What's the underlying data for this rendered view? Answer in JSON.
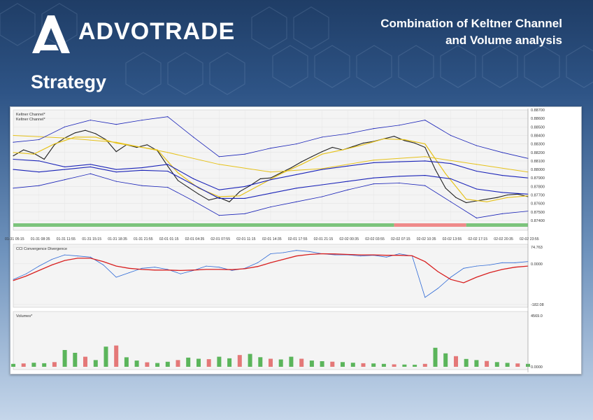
{
  "header": {
    "brand": "ADVOTRADE",
    "headline_line1": "Combination of Keltner Channel",
    "headline_line2": "and Volume analysis",
    "section_title": "Strategy"
  },
  "colors": {
    "price": "#222222",
    "keltner_ema": "#e6c21a",
    "keltner_outer": "#1a23b8",
    "cci_fast": "#2f6ad6",
    "cci_slow": "#d81f1f",
    "volume_up": "#3fa93f",
    "volume_down": "#e06161",
    "trend_up": "#7cc47c",
    "trend_down": "#ef8a8a"
  },
  "chart_data": [
    {
      "type": "line",
      "panel": "price",
      "legend": [
        "Keltner Channel*",
        "Keltner Channel*"
      ],
      "x_tick_labels": [
        "01-31 05:15",
        "01-31 08:35",
        "01-31 11:55",
        "01-31 15:15",
        "01-31 18:35",
        "01-31 21:55",
        "02-01 01:15",
        "02-01 04:35",
        "02-01 07:55",
        "02-01 11:15",
        "02-01 14:35",
        "02-01 17:55",
        "02-01 21:15",
        "02-02 00:35",
        "02-02 03:55",
        "02-02 07:15",
        "02-02 10:35",
        "02-02 13:55",
        "02-02 17:15",
        "02-02 20:35",
        "02-02 23:55"
      ],
      "y_tick_labels": [
        "0.88700",
        "0.88600",
        "0.88500",
        "0.88400",
        "0.88300",
        "0.88200",
        "0.88100",
        "0.88000",
        "0.87900",
        "0.87800",
        "0.87700",
        "0.87600",
        "0.87500",
        "0.87400"
      ],
      "ylim": [
        0.874,
        0.887
      ],
      "series": [
        {
          "role": "price",
          "x": [
            0,
            4,
            8,
            12,
            16,
            20,
            24,
            28,
            32,
            36,
            40,
            44,
            48,
            52,
            56,
            60,
            64,
            68,
            72,
            76,
            80,
            84,
            88,
            92,
            96,
            100,
            104,
            108,
            112,
            116,
            120,
            124,
            128,
            132,
            136,
            140,
            144,
            148,
            152,
            156,
            160,
            164,
            168,
            172,
            176,
            180,
            184,
            188,
            192,
            196,
            200
          ],
          "values": [
            0.8816,
            0.8823,
            0.8819,
            0.8812,
            0.8829,
            0.8837,
            0.8843,
            0.8846,
            0.8842,
            0.8835,
            0.8821,
            0.8829,
            0.8826,
            0.8829,
            0.8822,
            0.8804,
            0.8787,
            0.8779,
            0.8771,
            0.8764,
            0.8767,
            0.8762,
            0.8774,
            0.8781,
            0.8789,
            0.879,
            0.8796,
            0.8802,
            0.8809,
            0.8815,
            0.8821,
            0.8826,
            0.8823,
            0.8827,
            0.8831,
            0.8833,
            0.8836,
            0.8839,
            0.8834,
            0.8831,
            0.8826,
            0.88,
            0.8778,
            0.8767,
            0.8761,
            0.8763,
            0.8765,
            0.8767,
            0.877,
            0.8771,
            0.8768
          ]
        },
        {
          "role": "keltner_mid_fast",
          "x": [
            0,
            8,
            16,
            24,
            32,
            40,
            48,
            56,
            64,
            72,
            80,
            88,
            96,
            104,
            112,
            120,
            128,
            136,
            144,
            152,
            160,
            168,
            176,
            184,
            192,
            200
          ],
          "values": [
            0.882,
            0.8818,
            0.883,
            0.8838,
            0.8838,
            0.8831,
            0.8827,
            0.8823,
            0.8796,
            0.8778,
            0.8768,
            0.8769,
            0.8782,
            0.8795,
            0.8806,
            0.8818,
            0.8823,
            0.8829,
            0.8836,
            0.8835,
            0.883,
            0.8795,
            0.8765,
            0.8762,
            0.8767,
            0.8769
          ]
        },
        {
          "role": "keltner_mid_slow",
          "x": [
            0,
            20,
            40,
            60,
            80,
            100,
            120,
            140,
            160,
            180,
            200
          ],
          "values": [
            0.884,
            0.8837,
            0.8832,
            0.882,
            0.8806,
            0.8797,
            0.8801,
            0.8811,
            0.8815,
            0.8806,
            0.8797
          ]
        },
        {
          "role": "keltner_band_1",
          "x": [
            0,
            10,
            20,
            30,
            40,
            50,
            60,
            70,
            80,
            90,
            100,
            110,
            120,
            130,
            140,
            150,
            160,
            170,
            180,
            190,
            200
          ],
          "values": [
            0.8832,
            0.8835,
            0.885,
            0.8858,
            0.8853,
            0.8858,
            0.8862,
            0.8838,
            0.8815,
            0.8818,
            0.8825,
            0.883,
            0.8838,
            0.8842,
            0.8848,
            0.8852,
            0.8858,
            0.884,
            0.8828,
            0.882,
            0.8813
          ]
        },
        {
          "role": "keltner_band_2",
          "x": [
            0,
            10,
            20,
            30,
            40,
            50,
            60,
            70,
            80,
            90,
            100,
            110,
            120,
            130,
            140,
            150,
            160,
            170,
            180,
            190,
            200
          ],
          "values": [
            0.8812,
            0.881,
            0.8803,
            0.8806,
            0.88,
            0.8802,
            0.8806,
            0.8789,
            0.8776,
            0.878,
            0.8788,
            0.8794,
            0.88,
            0.8804,
            0.8808,
            0.8809,
            0.881,
            0.8807,
            0.8798,
            0.8793,
            0.879
          ]
        },
        {
          "role": "keltner_band_3",
          "x": [
            0,
            10,
            20,
            30,
            40,
            50,
            60,
            70,
            80,
            90,
            100,
            110,
            120,
            130,
            140,
            150,
            160,
            170,
            180,
            190,
            200
          ],
          "values": [
            0.88,
            0.8797,
            0.88,
            0.8803,
            0.8797,
            0.8799,
            0.8798,
            0.8782,
            0.8766,
            0.8766,
            0.8772,
            0.8778,
            0.8782,
            0.8786,
            0.879,
            0.8792,
            0.8793,
            0.8789,
            0.8777,
            0.8773,
            0.8771
          ]
        },
        {
          "role": "keltner_band_4",
          "x": [
            0,
            10,
            20,
            30,
            40,
            50,
            60,
            70,
            80,
            90,
            100,
            110,
            120,
            130,
            140,
            150,
            160,
            170,
            180,
            190,
            200
          ],
          "values": [
            0.8778,
            0.8781,
            0.8788,
            0.8795,
            0.8786,
            0.8781,
            0.8779,
            0.8763,
            0.8746,
            0.8748,
            0.8756,
            0.8762,
            0.8768,
            0.8776,
            0.8783,
            0.8784,
            0.8781,
            0.8762,
            0.8743,
            0.8748,
            0.8751
          ]
        }
      ],
      "trend_bar": [
        {
          "from": 0,
          "to": 148,
          "state": "up"
        },
        {
          "from": 148,
          "to": 176,
          "state": "down"
        },
        {
          "from": 176,
          "to": 200,
          "state": "up"
        }
      ]
    },
    {
      "type": "line",
      "panel": "cci",
      "legend": [
        "CCI Convergence Divergence"
      ],
      "y_tick_labels": [
        "74.763",
        "0.0000",
        "-182.08"
      ],
      "ylim": [
        -182.08,
        74.763
      ],
      "series": [
        {
          "role": "cci_fast",
          "x": [
            0,
            5,
            10,
            15,
            20,
            25,
            30,
            35,
            40,
            45,
            50,
            55,
            60,
            65,
            70,
            75,
            80,
            85,
            90,
            95,
            100,
            105,
            110,
            115,
            120,
            125,
            130,
            135,
            140,
            145,
            150,
            155,
            160,
            165,
            170,
            175,
            180,
            185,
            190,
            195,
            200
          ],
          "values": [
            -70,
            -45,
            -10,
            20,
            40,
            35,
            30,
            -5,
            -60,
            -40,
            -20,
            -15,
            -25,
            -45,
            -30,
            -10,
            -15,
            -30,
            -20,
            5,
            45,
            50,
            60,
            55,
            45,
            40,
            40,
            35,
            38,
            30,
            45,
            35,
            -150,
            -110,
            -60,
            -20,
            -10,
            -5,
            5,
            5,
            10
          ]
        },
        {
          "role": "cci_slow",
          "x": [
            0,
            5,
            10,
            15,
            20,
            25,
            30,
            35,
            40,
            45,
            50,
            55,
            60,
            65,
            70,
            75,
            80,
            85,
            90,
            95,
            100,
            105,
            110,
            115,
            120,
            125,
            130,
            135,
            140,
            145,
            150,
            155,
            160,
            165,
            170,
            175,
            180,
            185,
            190,
            195,
            200
          ],
          "values": [
            -75,
            -55,
            -30,
            -5,
            15,
            25,
            25,
            10,
            -10,
            -20,
            -25,
            -28,
            -28,
            -30,
            -28,
            -25,
            -25,
            -26,
            -22,
            -12,
            5,
            20,
            35,
            42,
            45,
            44,
            42,
            40,
            40,
            38,
            38,
            36,
            10,
            -35,
            -70,
            -85,
            -60,
            -40,
            -25,
            -15,
            -10
          ]
        }
      ]
    },
    {
      "type": "bar",
      "panel": "volume",
      "legend": [
        "Volumes*"
      ],
      "y_tick_labels": [
        "4569.0",
        "0.0000"
      ],
      "ylim": [
        0,
        4569.0
      ],
      "series": [
        {
          "role": "volume",
          "x": [
            0,
            4,
            8,
            12,
            16,
            20,
            24,
            28,
            32,
            36,
            40,
            44,
            48,
            52,
            56,
            60,
            64,
            68,
            72,
            76,
            80,
            84,
            88,
            92,
            96,
            100,
            104,
            108,
            112,
            116,
            120,
            124,
            128,
            132,
            136,
            140,
            144,
            148,
            152,
            156,
            160,
            164,
            168,
            172,
            176,
            180,
            184,
            188,
            192,
            196,
            200
          ],
          "values": [
            260,
            300,
            360,
            320,
            420,
            1500,
            1250,
            900,
            600,
            1800,
            1900,
            850,
            560,
            400,
            340,
            450,
            600,
            820,
            720,
            680,
            900,
            760,
            1050,
            1150,
            860,
            720,
            660,
            900,
            720,
            560,
            500,
            460,
            420,
            360,
            320,
            300,
            260,
            220,
            200,
            180,
            260,
            1700,
            1200,
            950,
            700,
            600,
            520,
            420,
            350,
            300,
            260
          ]
        }
      ]
    }
  ]
}
